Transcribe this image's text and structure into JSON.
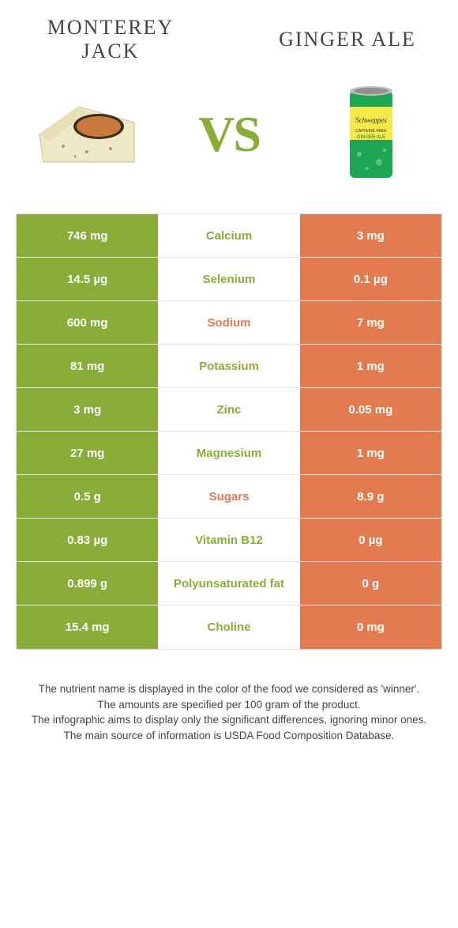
{
  "header": {
    "left_title": "MONTEREY JACK",
    "right_title": "GINGER ALE",
    "vs_text": "VS"
  },
  "colors": {
    "left": "#8aad3a",
    "right": "#e27b4f",
    "background": "#ffffff",
    "row_border": "#e8e8e8"
  },
  "table": {
    "rows": [
      {
        "left": "746 mg",
        "label": "Calcium",
        "right": "3 mg",
        "winner": "left"
      },
      {
        "left": "14.5 µg",
        "label": "Selenium",
        "right": "0.1 µg",
        "winner": "left"
      },
      {
        "left": "600 mg",
        "label": "Sodium",
        "right": "7 mg",
        "winner": "right"
      },
      {
        "left": "81 mg",
        "label": "Potassium",
        "right": "1 mg",
        "winner": "left"
      },
      {
        "left": "3 mg",
        "label": "Zinc",
        "right": "0.05 mg",
        "winner": "left"
      },
      {
        "left": "27 mg",
        "label": "Magnesium",
        "right": "1 mg",
        "winner": "left"
      },
      {
        "left": "0.5 g",
        "label": "Sugars",
        "right": "8.9 g",
        "winner": "right"
      },
      {
        "left": "0.83 µg",
        "label": "Vitamin B12",
        "right": "0 µg",
        "winner": "left"
      },
      {
        "left": "0.899 g",
        "label": "Polyunsaturated fat",
        "right": "0 g",
        "winner": "left"
      },
      {
        "left": "15.4 mg",
        "label": "Choline",
        "right": "0 mg",
        "winner": "left"
      }
    ]
  },
  "footer": {
    "line1": "The nutrient name is displayed in the color of the food we considered as 'winner'.",
    "line2": "The amounts are specified per 100 gram of the product.",
    "line3": "The infographic aims to display only the significant differences, ignoring minor ones.",
    "line4": "The main source of information is USDA Food Composition Database."
  }
}
